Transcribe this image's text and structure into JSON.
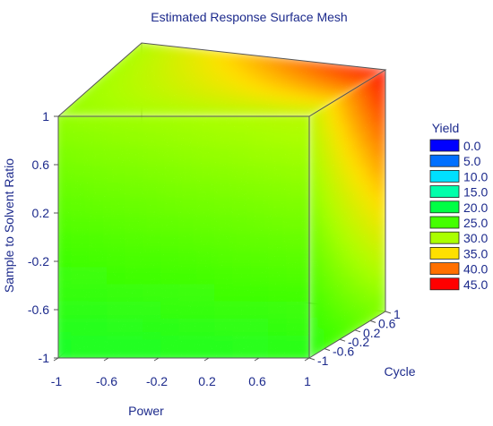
{
  "chart_data": {
    "type": "heatmap",
    "title": "Estimated Response Surface Mesh",
    "xlabel": "Power",
    "ylabel": "Sample to Solvent Ratio",
    "zlabel": "Cycle",
    "x_ticks": [
      "-1",
      "-0.6",
      "-0.2",
      "0.2",
      "0.6",
      "1"
    ],
    "y_ticks": [
      "-1",
      "-0.6",
      "-0.2",
      "0.2",
      "0.6",
      "1"
    ],
    "z_ticks": [
      "-1",
      "-0.6",
      "-0.2",
      "0.2",
      "0.6",
      "1"
    ],
    "xlim": [
      -1,
      1
    ],
    "ylim": [
      -1,
      1
    ],
    "zlim": [
      -1,
      1
    ],
    "legend": {
      "title": "Yield",
      "placement": "right",
      "levels": [
        {
          "label": "0.0",
          "value": 0,
          "color": "#0000ff"
        },
        {
          "label": "5.0",
          "value": 5,
          "color": "#0070ff"
        },
        {
          "label": "10.0",
          "value": 10,
          "color": "#00e0ff"
        },
        {
          "label": "15.0",
          "value": 15,
          "color": "#00ffaa"
        },
        {
          "label": "20.0",
          "value": 20,
          "color": "#00ff44"
        },
        {
          "label": "25.0",
          "value": 25,
          "color": "#44ff00"
        },
        {
          "label": "30.0",
          "value": 30,
          "color": "#aaff00"
        },
        {
          "label": "35.0",
          "value": 35,
          "color": "#ffe000"
        },
        {
          "label": "40.0",
          "value": 40,
          "color": "#ff7000"
        },
        {
          "label": "45.0",
          "value": 45,
          "color": "#ff0000"
        }
      ]
    },
    "faces": {
      "front": {
        "bottom_left": 22,
        "bottom_right": 23,
        "top_left": 29,
        "top_right": 31
      },
      "side": {
        "front_bottom": 23,
        "back_bottom": 28,
        "front_top": 31,
        "back_top": 45
      },
      "top": {
        "front_left": 29,
        "front_right": 31,
        "back_left": 30,
        "back_right": 45
      }
    }
  }
}
